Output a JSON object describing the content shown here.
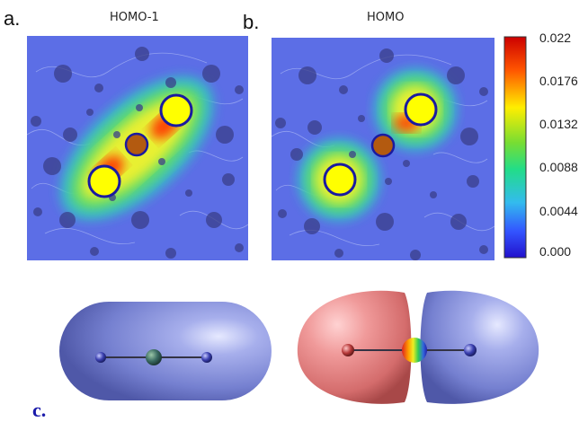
{
  "panels": {
    "a": {
      "letter": "a.",
      "title": "HOMO-1"
    },
    "b": {
      "letter": "b.",
      "title": "HOMO"
    },
    "c": {
      "letter": "c."
    }
  },
  "colorbar": {
    "ticks": [
      "0.022",
      "0.0176",
      "0.0132",
      "0.0088",
      "0.0044",
      "0.000"
    ],
    "colors": [
      "#cc0000",
      "#ff5500",
      "#ffee00",
      "#77dd33",
      "#22dd88",
      "#33bbee",
      "#3355ff",
      "#2211cc"
    ]
  },
  "colors": {
    "map_background": "#5c6ee6",
    "lobe_yellow": "#ffff00",
    "center_atom": "#b35a10",
    "lobe_blue": "#7f8bd8",
    "lobe_red": "#e88a8a"
  }
}
